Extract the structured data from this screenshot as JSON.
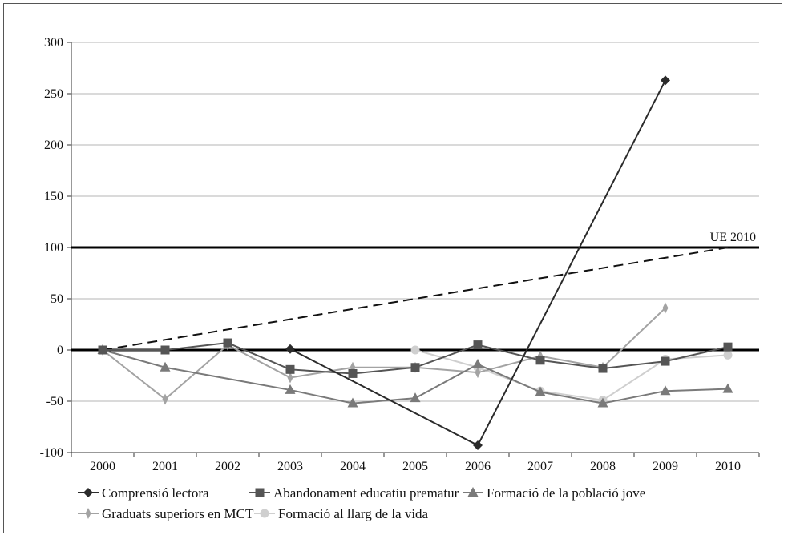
{
  "chart_data": {
    "type": "line",
    "title": "",
    "xlabel": "",
    "ylabel": "",
    "x": [
      "2000",
      "2001",
      "2002",
      "2003",
      "2004",
      "2005",
      "2006",
      "2007",
      "2008",
      "2009",
      "2010"
    ],
    "ylim": [
      -100,
      300
    ],
    "yticks": [
      -100,
      -50,
      0,
      50,
      100,
      150,
      200,
      250,
      300
    ],
    "grid": "horizontal",
    "legend_position": "bottom",
    "reference_lines": [
      {
        "y": 100,
        "label": "UE 2010",
        "style": "thick-solid"
      },
      {
        "y": 0,
        "label": "",
        "style": "thick-solid"
      }
    ],
    "trend_line": {
      "style": "dashed",
      "from": [
        "2000",
        0
      ],
      "to": [
        "2010",
        100
      ]
    },
    "series": [
      {
        "name": "Comprensió lectora",
        "color": "#2b2b2b",
        "marker": "diamond",
        "values": [
          null,
          null,
          null,
          1,
          null,
          null,
          -93,
          null,
          null,
          263,
          null
        ]
      },
      {
        "name": "Abandonament educatiu prematur",
        "color": "#555555",
        "marker": "square",
        "values": [
          0,
          0,
          7,
          -19,
          -23,
          -17,
          5,
          -10,
          -18,
          -11,
          3
        ]
      },
      {
        "name": "Formació de la població jove",
        "color": "#7a7a7a",
        "marker": "triangle",
        "values": [
          0,
          -17,
          null,
          -39,
          -52,
          -47,
          -14,
          -41,
          -52,
          -40,
          -38
        ]
      },
      {
        "name": "Graduats superiors en MCT",
        "color": "#a3a3a3",
        "marker": "thin-diamond",
        "values": [
          0,
          -48,
          5,
          -27,
          -17,
          -17,
          -22,
          -6,
          -17,
          41,
          null
        ]
      },
      {
        "name": "Formació al llarg de la vida",
        "color": "#cfcfcf",
        "marker": "circle",
        "values": [
          null,
          null,
          null,
          null,
          null,
          0,
          -17,
          -40,
          -49,
          -9,
          -5
        ]
      }
    ]
  }
}
